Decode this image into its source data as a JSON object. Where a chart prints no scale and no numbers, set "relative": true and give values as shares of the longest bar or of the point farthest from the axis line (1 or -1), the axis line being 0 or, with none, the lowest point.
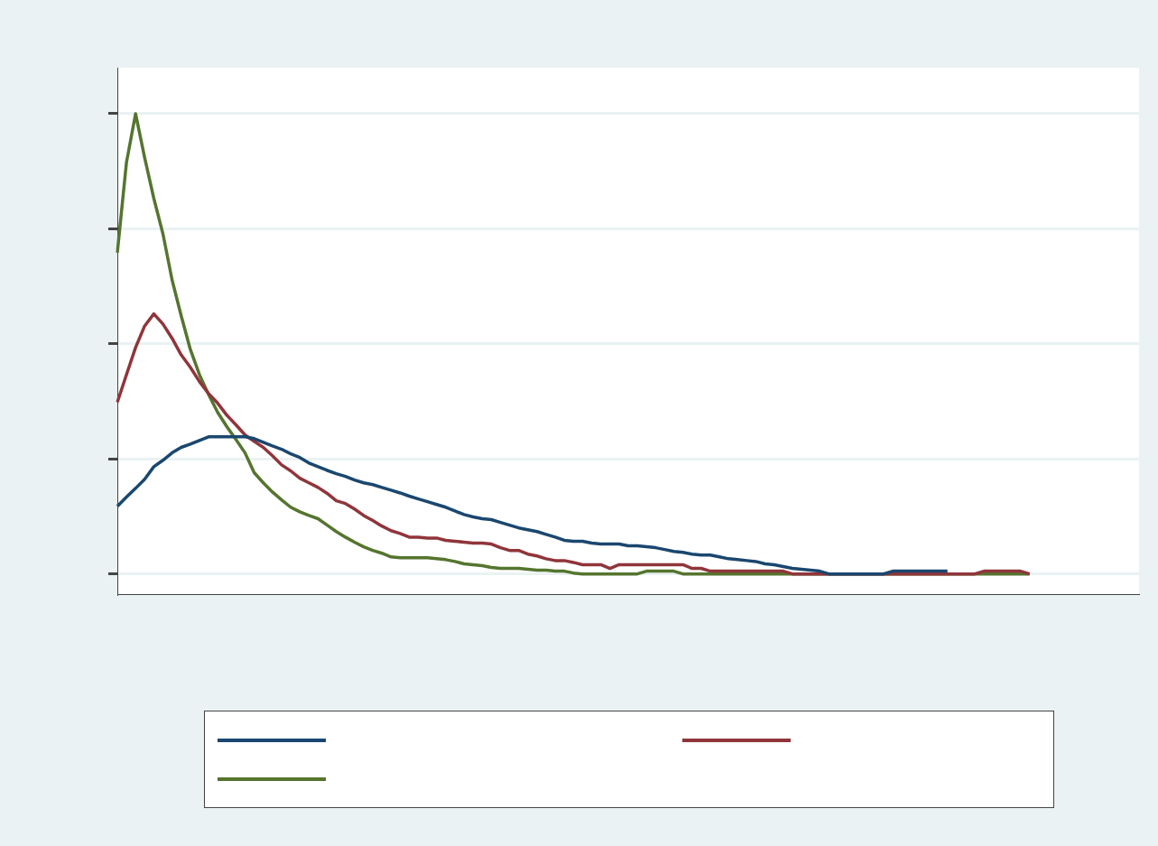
{
  "chart_data": {
    "type": "line",
    "relative": true,
    "grid": "y",
    "marker": "none",
    "line_style": "solid",
    "categories": [
      null,
      null,
      null,
      null,
      null,
      null,
      null,
      null,
      null,
      null,
      null,
      null,
      null,
      null,
      null,
      null,
      null,
      null,
      null,
      null,
      null,
      null,
      null,
      null,
      null,
      null,
      null,
      null,
      null,
      null,
      null,
      null,
      null,
      null,
      null,
      null,
      null,
      null,
      null,
      null,
      null,
      null,
      null,
      null,
      null,
      null,
      null,
      null,
      null,
      null,
      null,
      null,
      null,
      null,
      null,
      null,
      null,
      null,
      null,
      null,
      null,
      null,
      null,
      null,
      null,
      null,
      null,
      null,
      null,
      null,
      null,
      null,
      null,
      null,
      null,
      null,
      null,
      null,
      null,
      null,
      null,
      null,
      null,
      null,
      null,
      null,
      null,
      null,
      null,
      null,
      null,
      null,
      null,
      null,
      null,
      null,
      null,
      null,
      null,
      null,
      null,
      null,
      null,
      null,
      null,
      null,
      null,
      null,
      null,
      null,
      null,
      null,
      null
    ],
    "series": [
      {
        "color": "#1a476f",
        "values": [
          0.147,
          0.167,
          0.186,
          0.206,
          0.233,
          0.247,
          0.263,
          0.275,
          0.282,
          0.29,
          0.298,
          0.298,
          0.298,
          0.298,
          0.298,
          0.294,
          0.286,
          0.278,
          0.271,
          0.261,
          0.253,
          0.241,
          0.233,
          0.225,
          0.218,
          0.212,
          0.204,
          0.198,
          0.194,
          0.188,
          0.182,
          0.176,
          0.169,
          0.163,
          0.157,
          0.151,
          0.145,
          0.137,
          0.129,
          0.124,
          0.12,
          0.118,
          0.112,
          0.106,
          0.1,
          0.096,
          0.092,
          0.086,
          0.08,
          0.073,
          0.071,
          0.071,
          0.067,
          0.065,
          0.065,
          0.065,
          0.061,
          0.061,
          0.059,
          0.057,
          0.053,
          0.049,
          0.047,
          0.043,
          0.041,
          0.041,
          0.037,
          0.033,
          0.031,
          0.029,
          0.027,
          0.022,
          0.02,
          0.016,
          0.012,
          0.01,
          0.008,
          0.006,
          0,
          0,
          0,
          0,
          0,
          0,
          0,
          0.006,
          0.006,
          0.006,
          0.006,
          0.006,
          0.006,
          0.006,
          null,
          null,
          null,
          null,
          null,
          null,
          null,
          null,
          null,
          null,
          null,
          null,
          null,
          null,
          null,
          null,
          null,
          null,
          null,
          null,
          null
        ]
      },
      {
        "color": "#90353b",
        "values": [
          0.373,
          0.433,
          0.492,
          0.539,
          0.565,
          0.543,
          0.512,
          0.476,
          0.449,
          0.418,
          0.392,
          0.371,
          0.345,
          0.324,
          0.302,
          0.288,
          0.275,
          0.257,
          0.237,
          0.224,
          0.208,
          0.198,
          0.188,
          0.175,
          0.159,
          0.153,
          0.141,
          0.127,
          0.116,
          0.104,
          0.094,
          0.088,
          0.08,
          0.08,
          0.078,
          0.078,
          0.073,
          0.071,
          0.069,
          0.067,
          0.067,
          0.065,
          0.057,
          0.051,
          0.051,
          0.043,
          0.039,
          0.033,
          0.029,
          0.029,
          0.025,
          0.02,
          0.02,
          0.02,
          0.012,
          0.02,
          0.02,
          0.02,
          0.02,
          0.02,
          0.02,
          0.02,
          0.02,
          0.012,
          0.012,
          0.006,
          0.006,
          0.006,
          0.006,
          0.006,
          0.006,
          0.006,
          0.006,
          0.006,
          0,
          0,
          0,
          0,
          0,
          0,
          0,
          0,
          0,
          0,
          0,
          0,
          0,
          0,
          0,
          0,
          0,
          0,
          0,
          0,
          0,
          0.006,
          0.006,
          0.006,
          0.006,
          0.006,
          0,
          null,
          null,
          null,
          null,
          null,
          null,
          null,
          null,
          null,
          null,
          null,
          null
        ]
      },
      {
        "color": "#55752f",
        "values": [
          0.698,
          0.894,
          1,
          0.904,
          0.816,
          0.739,
          0.639,
          0.561,
          0.488,
          0.433,
          0.39,
          0.351,
          0.32,
          0.292,
          0.263,
          0.22,
          0.198,
          0.178,
          0.161,
          0.145,
          0.135,
          0.127,
          0.12,
          0.106,
          0.092,
          0.08,
          0.069,
          0.059,
          0.051,
          0.045,
          0.037,
          0.035,
          0.035,
          0.035,
          0.035,
          0.033,
          0.031,
          0.027,
          0.022,
          0.02,
          0.018,
          0.014,
          0.012,
          0.012,
          0.012,
          0.01,
          0.008,
          0.008,
          0.006,
          0.006,
          0.002,
          0,
          0,
          0,
          0,
          0,
          0,
          0,
          0.006,
          0.006,
          0.006,
          0.006,
          0,
          0,
          0,
          0,
          0,
          0,
          0,
          0,
          0,
          0,
          0,
          0,
          0,
          0,
          0,
          0,
          0,
          0,
          0,
          0,
          0,
          0,
          0,
          0,
          0,
          0,
          0,
          0,
          0,
          0,
          0,
          0,
          0,
          0,
          0,
          0,
          0,
          0,
          0,
          null,
          null,
          null,
          null,
          null,
          null,
          null,
          null,
          null,
          null,
          null,
          null
        ]
      }
    ]
  }
}
